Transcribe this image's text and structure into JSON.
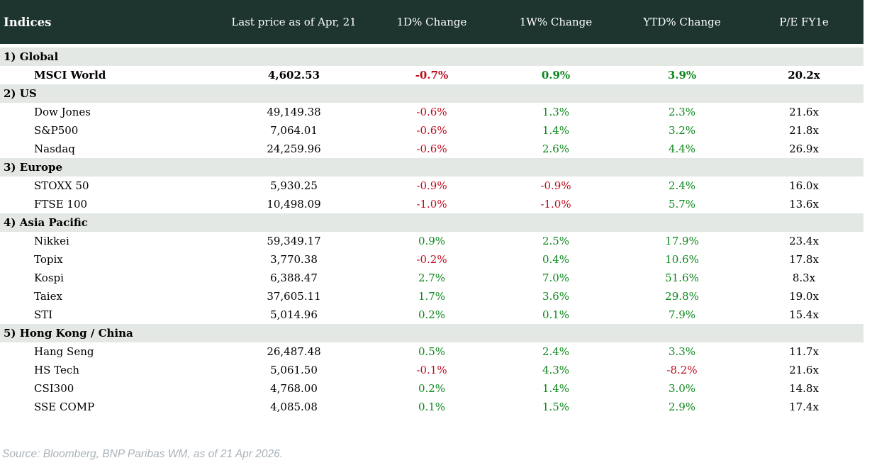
{
  "chart_data": {
    "type": "table",
    "title": "Indices",
    "columns": [
      "Indices",
      "Last price as of Apr, 21",
      "1D% Change",
      "1W% Change",
      "YTD% Change",
      "P/E FY1e"
    ],
    "highlight_row": "MSCI World",
    "sections": [
      {
        "name": "1) Global",
        "rows": [
          [
            "MSCI World",
            "4,602.53",
            "-0.7%",
            "0.9%",
            "3.9%",
            "20.2x"
          ]
        ]
      },
      {
        "name": "2) US",
        "rows": [
          [
            "Dow Jones",
            "49,149.38",
            "-0.6%",
            "1.3%",
            "2.3%",
            "21.6x"
          ],
          [
            "S&P500",
            "7,064.01",
            "-0.6%",
            "1.4%",
            "3.2%",
            "21.8x"
          ],
          [
            "Nasdaq",
            "24,259.96",
            "-0.6%",
            "2.6%",
            "4.4%",
            "26.9x"
          ]
        ]
      },
      {
        "name": "3) Europe",
        "rows": [
          [
            "STOXX 50",
            "5,930.25",
            "-0.9%",
            "-0.9%",
            "2.4%",
            "16.0x"
          ],
          [
            "FTSE 100",
            "10,498.09",
            "-1.0%",
            "-1.0%",
            "5.7%",
            "13.6x"
          ]
        ]
      },
      {
        "name": "4) Asia Pacific",
        "rows": [
          [
            "Nikkei",
            "59,349.17",
            "0.9%",
            "2.5%",
            "17.9%",
            "23.4x"
          ],
          [
            "Topix",
            "3,770.38",
            "-0.2%",
            "0.4%",
            "10.6%",
            "17.8x"
          ],
          [
            "Kospi",
            "6,388.47",
            "2.7%",
            "7.0%",
            "51.6%",
            "8.3x"
          ],
          [
            "Taiex",
            "37,605.11",
            "1.7%",
            "3.6%",
            "29.8%",
            "19.0x"
          ],
          [
            "STI",
            "5,014.96",
            "0.2%",
            "0.1%",
            "7.9%",
            "15.4x"
          ]
        ]
      },
      {
        "name": "5) Hong Kong / China",
        "rows": [
          [
            "Hang Seng",
            "26,487.48",
            "0.5%",
            "2.4%",
            "3.3%",
            "11.7x"
          ],
          [
            "HS Tech",
            "5,061.50",
            "-0.1%",
            "4.3%",
            "-8.2%",
            "21.6x"
          ],
          [
            "CSI300",
            "4,768.00",
            "0.2%",
            "1.4%",
            "3.0%",
            "14.8x"
          ],
          [
            "SSE COMP",
            "4,085.08",
            "0.1%",
            "1.5%",
            "2.9%",
            "17.4x"
          ]
        ]
      }
    ],
    "source": "Source: Bloomberg, BNP Paribas WM, as of 21 Apr 2026."
  },
  "colors": {
    "header_bg": "#1e352f",
    "header_text": "#ffffff",
    "section_bg": "#e3e8e4",
    "positive": "#0c871b",
    "negative": "#c00a1e",
    "text": "#000000",
    "source_text": "#a9b3b9"
  }
}
